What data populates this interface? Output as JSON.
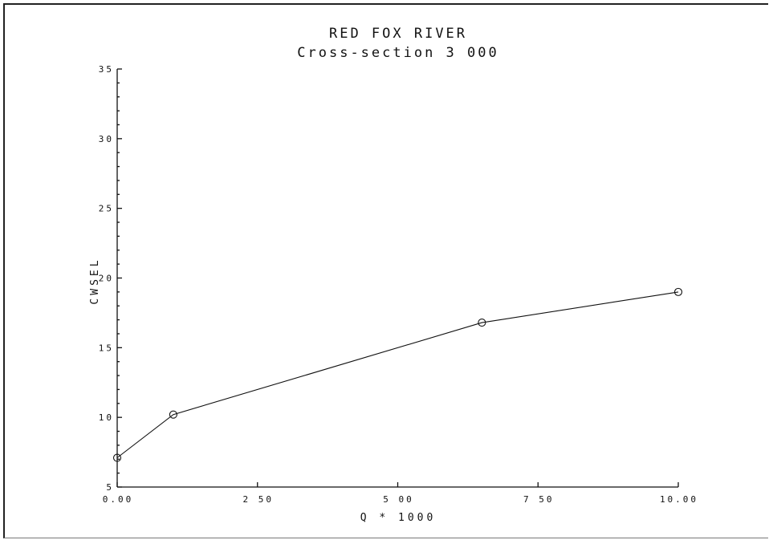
{
  "chart_data": {
    "type": "line",
    "title": "RED FOX RIVER",
    "subtitle": "Cross-section 3 000",
    "xlabel": "Q * 1000",
    "ylabel": "CWSEL",
    "xlim": [
      0,
      10
    ],
    "ylim": [
      5,
      35
    ],
    "x_ticks": [
      {
        "value": 0,
        "label": "0.00"
      },
      {
        "value": 2.5,
        "label": "2 50"
      },
      {
        "value": 5,
        "label": "5 00"
      },
      {
        "value": 7.5,
        "label": "7 50"
      },
      {
        "value": 10,
        "label": "10.00"
      }
    ],
    "y_ticks": [
      {
        "value": 5,
        "label": "5"
      },
      {
        "value": 10,
        "label": "10"
      },
      {
        "value": 15,
        "label": "15"
      },
      {
        "value": 20,
        "label": "20"
      },
      {
        "value": 25,
        "label": "25"
      },
      {
        "value": 30,
        "label": "30"
      },
      {
        "value": 35,
        "label": "35"
      }
    ],
    "y_minor_step": 1,
    "marker": "circle",
    "series": [
      {
        "x": [
          0.0,
          1.0,
          6.5,
          10.0
        ],
        "y": [
          7.1,
          10.2,
          16.8,
          19.0
        ]
      }
    ],
    "grid": false,
    "legend": "none"
  }
}
